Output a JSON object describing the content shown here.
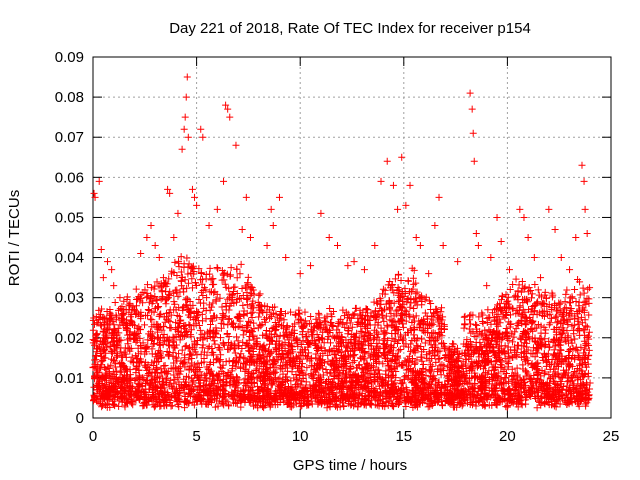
{
  "chart_data": {
    "type": "scatter",
    "title": "Day 221 of 2018, Rate Of TEC Index for receiver p154",
    "xlabel": "GPS time / hours",
    "ylabel": "ROTI / TECUs",
    "xlim": [
      0,
      25
    ],
    "ylim": [
      0,
      0.09
    ],
    "xticks": [
      0,
      5,
      10,
      15,
      20,
      25
    ],
    "xtick_labels": [
      "0",
      "5",
      "10",
      "15",
      "20",
      "25"
    ],
    "yticks": [
      0,
      0.01,
      0.02,
      0.03,
      0.04,
      0.05,
      0.06,
      0.07,
      0.08,
      0.09
    ],
    "ytick_labels": [
      "0",
      "0.01",
      "0.02",
      "0.03",
      "0.04",
      "0.05",
      "0.06",
      "0.07",
      "0.08",
      "0.09"
    ],
    "grid": true,
    "marker": "+",
    "color": "#ff0000",
    "series": [
      {
        "name": "ROTI",
        "points": [
          [
            0.05,
            0.056
          ],
          [
            0.1,
            0.055
          ],
          [
            0.3,
            0.059
          ],
          [
            0.4,
            0.042
          ],
          [
            0.5,
            0.035
          ],
          [
            0.7,
            0.039
          ],
          [
            0.9,
            0.037
          ],
          [
            1.0,
            0.033
          ],
          [
            1.3,
            0.03
          ],
          [
            1.6,
            0.027
          ],
          [
            2.1,
            0.028
          ],
          [
            2.3,
            0.041
          ],
          [
            2.6,
            0.045
          ],
          [
            2.8,
            0.048
          ],
          [
            3.0,
            0.043
          ],
          [
            3.2,
            0.04
          ],
          [
            3.4,
            0.035
          ],
          [
            3.6,
            0.057
          ],
          [
            3.7,
            0.056
          ],
          [
            3.9,
            0.045
          ],
          [
            4.1,
            0.051
          ],
          [
            4.3,
            0.067
          ],
          [
            4.4,
            0.072
          ],
          [
            4.45,
            0.075
          ],
          [
            4.5,
            0.08
          ],
          [
            4.55,
            0.085
          ],
          [
            4.6,
            0.07
          ],
          [
            4.8,
            0.057
          ],
          [
            4.9,
            0.055
          ],
          [
            5.0,
            0.053
          ],
          [
            5.2,
            0.072
          ],
          [
            5.3,
            0.07
          ],
          [
            5.6,
            0.048
          ],
          [
            6.0,
            0.052
          ],
          [
            6.3,
            0.059
          ],
          [
            6.4,
            0.078
          ],
          [
            6.5,
            0.077
          ],
          [
            6.6,
            0.075
          ],
          [
            6.9,
            0.068
          ],
          [
            7.2,
            0.047
          ],
          [
            7.4,
            0.055
          ],
          [
            7.6,
            0.045
          ],
          [
            8.4,
            0.043
          ],
          [
            8.6,
            0.052
          ],
          [
            8.7,
            0.048
          ],
          [
            9.0,
            0.055
          ],
          [
            9.3,
            0.04
          ],
          [
            10.0,
            0.036
          ],
          [
            10.5,
            0.038
          ],
          [
            11.0,
            0.051
          ],
          [
            11.4,
            0.045
          ],
          [
            11.8,
            0.043
          ],
          [
            12.3,
            0.038
          ],
          [
            12.6,
            0.039
          ],
          [
            13.1,
            0.037
          ],
          [
            13.6,
            0.043
          ],
          [
            13.9,
            0.059
          ],
          [
            14.2,
            0.064
          ],
          [
            14.5,
            0.058
          ],
          [
            14.7,
            0.052
          ],
          [
            14.9,
            0.065
          ],
          [
            15.1,
            0.053
          ],
          [
            15.3,
            0.058
          ],
          [
            15.6,
            0.045
          ],
          [
            15.8,
            0.043
          ],
          [
            16.2,
            0.036
          ],
          [
            16.5,
            0.048
          ],
          [
            16.7,
            0.055
          ],
          [
            16.9,
            0.043
          ],
          [
            17.6,
            0.039
          ],
          [
            18.2,
            0.081
          ],
          [
            18.3,
            0.077
          ],
          [
            18.35,
            0.071
          ],
          [
            18.4,
            0.064
          ],
          [
            18.5,
            0.046
          ],
          [
            18.6,
            0.043
          ],
          [
            19.0,
            0.033
          ],
          [
            19.2,
            0.04
          ],
          [
            19.5,
            0.05
          ],
          [
            19.7,
            0.044
          ],
          [
            20.1,
            0.037
          ],
          [
            20.6,
            0.052
          ],
          [
            20.8,
            0.05
          ],
          [
            21.0,
            0.045
          ],
          [
            21.3,
            0.04
          ],
          [
            21.6,
            0.035
          ],
          [
            22.0,
            0.052
          ],
          [
            22.3,
            0.047
          ],
          [
            22.6,
            0.04
          ],
          [
            23.0,
            0.037
          ],
          [
            23.3,
            0.045
          ],
          [
            23.6,
            0.063
          ],
          [
            23.7,
            0.059
          ],
          [
            23.75,
            0.052
          ],
          [
            23.85,
            0.046
          ]
        ]
      }
    ]
  }
}
